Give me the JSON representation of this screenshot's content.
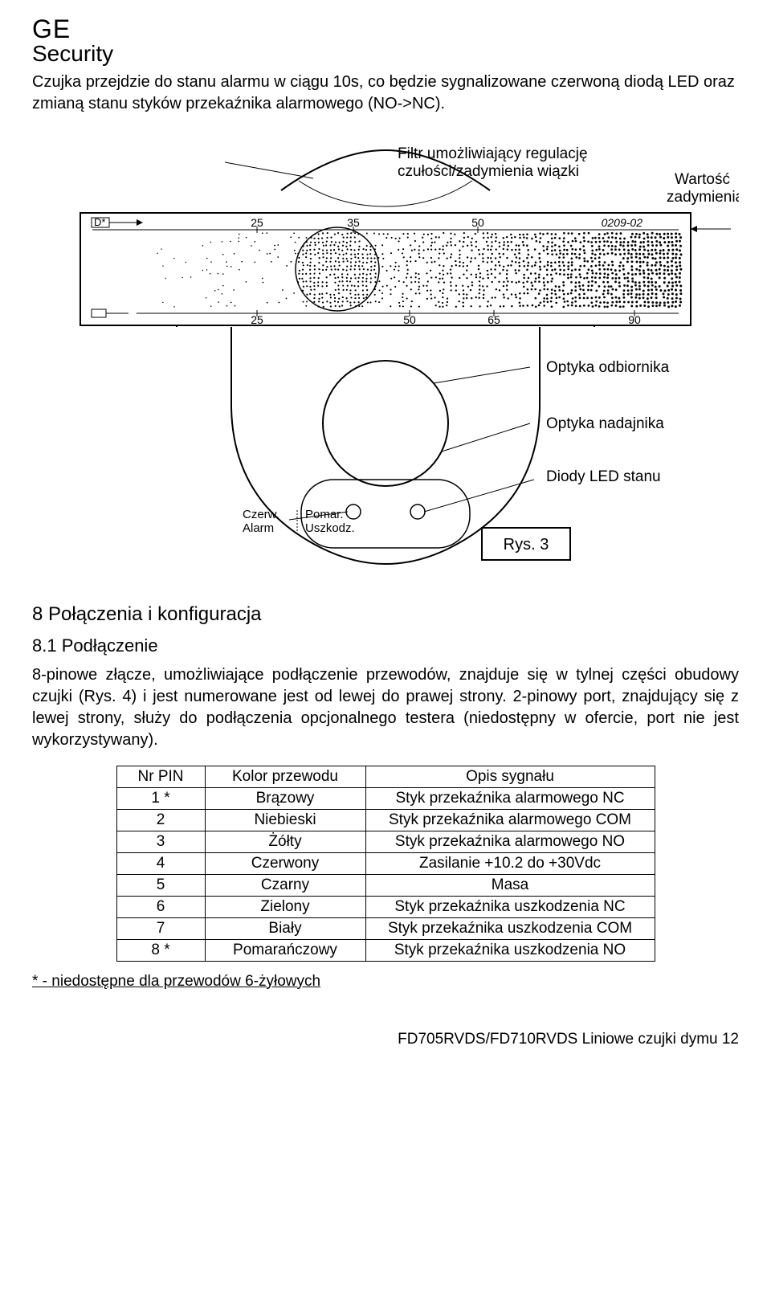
{
  "brand": {
    "line1": "GE",
    "line2": "Security"
  },
  "intro": "Czujka przejdzie do stanu alarmu w ciągu 10s, co będzie sygnalizowane czerwoną diodą LED oraz zmianą stanu styków przekaźnika alarmowego (NO->NC).",
  "diagram": {
    "label_filter": "Filtr umożliwiający regulację",
    "label_filter2": "czułości/zadymienia wiązki",
    "label_smoke": "Wartość",
    "label_smoke2": "zadymienia",
    "label_receiver": "Optyka odbiornika",
    "label_transmitter": "Optyka nadajnika",
    "label_leds": "Diody LED stanu",
    "led_left_top": "Czerw.",
    "led_left_bot": "Alarm",
    "led_right_top": "Pomar.",
    "led_right_bot": "Uszkodz.",
    "fig_label": "Rys. 3",
    "scale_top": [
      "25",
      "35",
      "50"
    ],
    "scale_top_ref": "0209-02",
    "scale_bot": [
      "25",
      "50",
      "65",
      "90"
    ],
    "colors": {
      "stroke": "#000000",
      "fill_bg": "#ffffff"
    }
  },
  "section8": {
    "heading": "8   Połączenia i konfiguracja",
    "sub": "8.1   Podłączenie",
    "para": "8-pinowe złącze, umożliwiające podłączenie przewodów, znajduje się w tylnej części obudowy czujki (Rys. 4) i jest numerowane jest od lewej do prawej strony. 2-pinowy port, znajdujący się z lewej strony, służy do podłączenia opcjonalnego testera (niedostępny w ofercie, port nie jest wykorzystywany).",
    "table": {
      "columns": [
        "Nr PIN",
        "Kolor przewodu",
        "Opis sygnału"
      ],
      "col_widths": [
        "110px",
        "200px",
        "360px"
      ],
      "rows": [
        [
          "1 *",
          "Brązowy",
          "Styk przekaźnika alarmowego NC"
        ],
        [
          "2",
          "Niebieski",
          "Styk przekaźnika alarmowego COM"
        ],
        [
          "3",
          "Żółty",
          "Styk przekaźnika alarmowego NO"
        ],
        [
          "4",
          "Czerwony",
          "Zasilanie +10.2 do +30Vdc"
        ],
        [
          "5",
          "Czarny",
          "Masa"
        ],
        [
          "6",
          "Zielony",
          "Styk przekaźnika uszkodzenia NC"
        ],
        [
          "7",
          "Biały",
          "Styk przekaźnika uszkodzenia COM"
        ],
        [
          "8 *",
          "Pomarańczowy",
          "Styk przekaźnika uszkodzenia NO"
        ]
      ]
    },
    "footnote": "* - niedostępne dla przewodów 6-żyłowych"
  },
  "footer": "FD705RVDS/FD710RVDS Liniowe czujki dymu  12"
}
